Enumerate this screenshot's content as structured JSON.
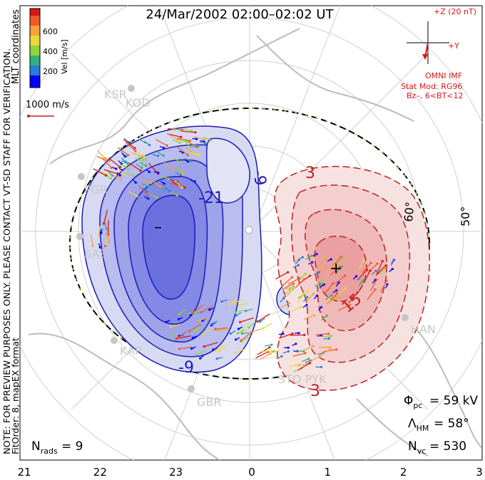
{
  "title": "24/Mar/2002 02:00–02:02 UT",
  "side_notes": {
    "coords": "MLT coordinates",
    "note_line1": "NOTE: FOR PREVIEW PURPOSES ONLY. PLEASE CONTACT VT-SD STAFF FOR VERIFICATION.",
    "note_line2": "FitOrder: 8, mapEX format"
  },
  "colorbar": {
    "label": "Vel [m/s]",
    "ticks": [
      "600",
      "400",
      "200"
    ],
    "colors": [
      "#0000ff",
      "#2a7dd6",
      "#34b07a",
      "#8fd43a",
      "#e9d93c",
      "#f5a23a",
      "#ef5a2a",
      "#d81818"
    ]
  },
  "scale": {
    "label": "1000 m/s"
  },
  "imf": {
    "z_label": "+Z (20 nT)",
    "y_label": "+Y",
    "source": "OMNI IMF",
    "model_line1": "Stat Mod: RG96",
    "model_line2": "Bz–, 6<BT<12"
  },
  "stations": [
    "KSR",
    "KOD",
    "PGR",
    "SAS",
    "KAP",
    "GBR",
    "STO",
    "PYK",
    "HAN"
  ],
  "stats": {
    "phi_pc": "= 59 kV",
    "lambda_hm": "= 58°",
    "n_vc": "= 530",
    "n_rads": "= 9"
  },
  "lat_label": "50°",
  "lat_label_2": "60°",
  "chart_data": {
    "type": "polar-contour",
    "title": "24/Mar/2002 02:00–02:02 UT",
    "x_axis_ticks": [
      "21",
      "22",
      "23",
      "0",
      "1",
      "2",
      "3"
    ],
    "contour_labels": [
      {
        "value": "-9",
        "cell": "dusk"
      },
      {
        "value": "-21",
        "cell": "dusk"
      },
      {
        "value": "-9",
        "cell": "dusk"
      },
      {
        "value": "3",
        "cell": "dawn"
      },
      {
        "value": "15",
        "cell": "dawn"
      },
      {
        "value": "3",
        "cell": "dawn"
      }
    ],
    "extrema": [
      {
        "symbol": "–",
        "cell": "dusk"
      },
      {
        "symbol": "+",
        "cell": "dawn"
      }
    ],
    "cross_polar_cap_potential_kV": 59,
    "heppner_maynard_lat_deg": 58,
    "num_vectors": 530,
    "num_radars": 9
  }
}
